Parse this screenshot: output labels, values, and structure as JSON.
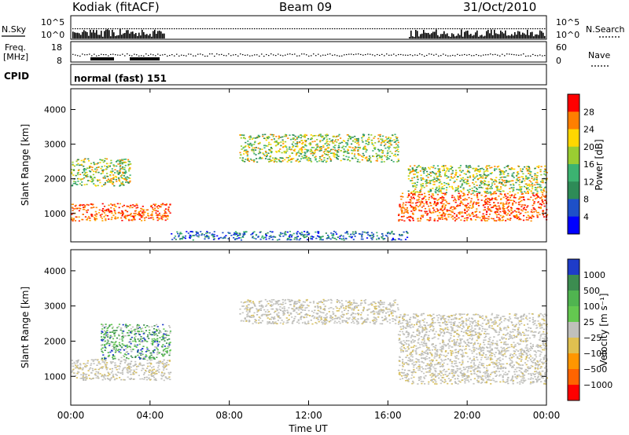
{
  "header": {
    "station": "Kodiak (fitACF)",
    "beam": "Beam 09",
    "date": "31/Oct/2010"
  },
  "summary": {
    "nsky_label": "N.Sky",
    "nsky_ticks": [
      "10^5",
      "10^0"
    ],
    "nsearch_label": "N.Search",
    "nsearch_ticks": [
      "10^5",
      "10^0"
    ],
    "freq_label_1": "Freq.",
    "freq_label_2": "[MHz]",
    "freq_ticks": [
      "18",
      "8"
    ],
    "nave_label": "Nave",
    "nave_ticks": [
      "60",
      "0"
    ],
    "cpid_label": "CPID",
    "cpid_value": "normal (fast) 151"
  },
  "chart_data": [
    {
      "type": "heatmap",
      "title": "",
      "xlabel": "",
      "ylabel": "Slant Range [km]",
      "ylim": [
        180,
        4600
      ],
      "yticks": [
        "4000",
        "3000",
        "2000",
        "1000"
      ],
      "colorbar": {
        "label": "Power [dB]",
        "ticks": [
          "28",
          "24",
          "20",
          "16",
          "12",
          "8",
          "4"
        ],
        "colors": [
          "#ff0000",
          "#ff7f00",
          "#ffd700",
          "#9acd32",
          "#3cb371",
          "#2e8b57",
          "#1e50c8",
          "#0000ff"
        ]
      },
      "echo_bands_km": [
        {
          "t_start": 0.0,
          "t_end": 5.0,
          "r_low": 800,
          "r_high": 1300,
          "level": "high"
        },
        {
          "t_start": 0.0,
          "t_end": 3.0,
          "r_low": 1800,
          "r_high": 2600,
          "level": "medium"
        },
        {
          "t_start": 5.0,
          "t_end": 17.0,
          "r_low": 250,
          "r_high": 500,
          "level": "low"
        },
        {
          "t_start": 8.5,
          "t_end": 16.5,
          "r_low": 2500,
          "r_high": 3300,
          "level": "medium"
        },
        {
          "t_start": 16.5,
          "t_end": 24.0,
          "r_low": 800,
          "r_high": 1600,
          "level": "high"
        },
        {
          "t_start": 17.0,
          "t_end": 24.0,
          "r_low": 1600,
          "r_high": 2400,
          "level": "medium"
        }
      ]
    },
    {
      "type": "heatmap",
      "title": "",
      "xlabel": "Time UT",
      "ylabel": "Slant Range [km]",
      "ylim": [
        180,
        4600
      ],
      "xlim": [
        0,
        24
      ],
      "xticks": [
        "00:00",
        "04:00",
        "08:00",
        "12:00",
        "16:00",
        "20:00",
        "00:00"
      ],
      "yticks": [
        "4000",
        "3000",
        "2000",
        "1000"
      ],
      "colorbar": {
        "label": "Velocity [m s⁻¹]",
        "ticks": [
          "1000",
          "500",
          "100",
          "25",
          "−25",
          "−100",
          "−500",
          "−1000"
        ],
        "colors": [
          "#1e3cc8",
          "#3c8c50",
          "#50b450",
          "#64c850",
          "#c0c0bc",
          "#e0c050",
          "#ff9600",
          "#ff6400",
          "#ff0000"
        ]
      },
      "echo_bands_km": [
        {
          "t_start": 0.0,
          "t_end": 5.0,
          "r_low": 900,
          "r_high": 1500,
          "level": "ground"
        },
        {
          "t_start": 1.5,
          "t_end": 5.0,
          "r_low": 1500,
          "r_high": 2500,
          "level": "positive"
        },
        {
          "t_start": 8.5,
          "t_end": 16.5,
          "r_low": 2500,
          "r_high": 3200,
          "level": "ground"
        },
        {
          "t_start": 16.5,
          "t_end": 24.0,
          "r_low": 800,
          "r_high": 2800,
          "level": "ground"
        }
      ]
    }
  ]
}
